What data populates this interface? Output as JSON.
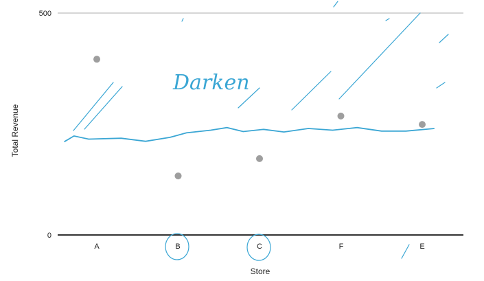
{
  "chart_data": {
    "type": "scatter",
    "title": "",
    "xlabel": "Store",
    "ylabel": "Total Revenue",
    "categories": [
      "A",
      "B",
      "C",
      "F",
      "E"
    ],
    "ylim": [
      0,
      500
    ],
    "yticks": [
      "0",
      "500"
    ],
    "grid": true,
    "series": [
      {
        "values": [
          396,
          133,
          172,
          268,
          249
        ]
      }
    ],
    "trend_line": [
      [
        0.0,
        210
      ],
      [
        0.12,
        223
      ],
      [
        0.3,
        216
      ],
      [
        0.7,
        218
      ],
      [
        1.0,
        211
      ],
      [
        1.3,
        220
      ],
      [
        1.5,
        230
      ],
      [
        1.8,
        236
      ],
      [
        2.0,
        242
      ],
      [
        2.2,
        233
      ],
      [
        2.45,
        238
      ],
      [
        2.7,
        232
      ],
      [
        3.0,
        240
      ],
      [
        3.3,
        236
      ],
      [
        3.6,
        242
      ],
      [
        3.9,
        234
      ],
      [
        4.2,
        234
      ],
      [
        4.55,
        240
      ]
    ]
  },
  "annotations": {
    "note_text": "Darken",
    "circled_labels": [
      "B",
      "C"
    ],
    "colors": {
      "ink": "#3aa6d4",
      "points": "#9e9e9e",
      "axis": "#333333",
      "grid": "#d6d6d6"
    }
  }
}
